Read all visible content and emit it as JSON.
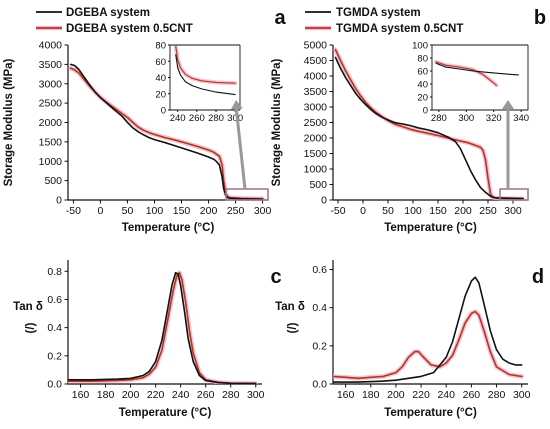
{
  "colors": {
    "black_series": "#111111",
    "red_series": "#b5361c",
    "red_glow": "#f2b8cf",
    "callout": "#999999",
    "callout_box": "#a07b92"
  },
  "chart_data": [
    {
      "id": "a",
      "type": "line",
      "panel_letter": "a",
      "xlabel": "Temperature (°C)",
      "ylabel": "Storage Modulus (MPa)",
      "xlim": [
        -60,
        310
      ],
      "ylim": [
        0,
        4000
      ],
      "xticks": [
        -50,
        0,
        50,
        100,
        150,
        200,
        250,
        300
      ],
      "yticks": [
        0,
        500,
        1000,
        1500,
        2000,
        2500,
        3000,
        3500,
        4000
      ],
      "legend": {
        "placement": "top",
        "entries": [
          "DGEBA system",
          "DGEBA system 0.5CNT"
        ]
      },
      "series": [
        {
          "name": "DGEBA system",
          "color": "black",
          "x": [
            -55,
            -48,
            -40,
            -30,
            -20,
            -10,
            0,
            10,
            20,
            30,
            40,
            50,
            60,
            70,
            80,
            90,
            100,
            120,
            140,
            160,
            180,
            200,
            210,
            215,
            220,
            225,
            228,
            232,
            236,
            240,
            260,
            280,
            300
          ],
          "y": [
            3500,
            3470,
            3370,
            3170,
            2970,
            2790,
            2640,
            2520,
            2400,
            2280,
            2160,
            2000,
            1860,
            1760,
            1680,
            1610,
            1560,
            1480,
            1390,
            1300,
            1210,
            1110,
            1050,
            990,
            900,
            600,
            300,
            110,
            60,
            45,
            30,
            25,
            20
          ]
        },
        {
          "name": "DGEBA system 0.5CNT",
          "color": "red",
          "x": [
            -55,
            -48,
            -40,
            -30,
            -20,
            -10,
            0,
            10,
            20,
            30,
            40,
            50,
            60,
            70,
            80,
            90,
            100,
            120,
            140,
            160,
            180,
            200,
            210,
            215,
            220,
            225,
            228,
            232,
            236,
            240,
            260,
            280,
            300
          ],
          "y": [
            3400,
            3360,
            3280,
            3110,
            2940,
            2790,
            2650,
            2540,
            2430,
            2330,
            2230,
            2130,
            2000,
            1880,
            1800,
            1740,
            1690,
            1610,
            1540,
            1460,
            1380,
            1290,
            1230,
            1180,
            1130,
            900,
            500,
            160,
            80,
            60,
            45,
            38,
            33
          ]
        }
      ],
      "inset": {
        "xlim": [
          232,
          305
        ],
        "ylim": [
          0,
          80
        ],
        "xticks": [
          240,
          260,
          280,
          300
        ],
        "yticks": [
          0,
          20,
          40,
          60,
          80
        ],
        "series": [
          {
            "name": "DGEBA system",
            "color": "black",
            "x": [
              238,
              240,
              243,
              248,
              255,
              265,
              280,
              300
            ],
            "y": [
              68,
              52,
              43,
              35,
              30,
              26,
              22,
              19
            ]
          },
          {
            "name": "DGEBA system 0.5CNT",
            "color": "red",
            "x": [
              238,
              240,
              243,
              248,
              255,
              265,
              280,
              300
            ],
            "y": [
              78,
              62,
              52,
              44,
              39,
              36,
              34,
              33
            ]
          }
        ]
      }
    },
    {
      "id": "b",
      "type": "line",
      "panel_letter": "b",
      "xlabel": "Temperature (°C)",
      "ylabel": "Storage Modulus (MPa)",
      "xlim": [
        -60,
        330
      ],
      "ylim": [
        0,
        5000
      ],
      "xticks": [
        -50,
        0,
        50,
        100,
        150,
        200,
        250,
        300
      ],
      "yticks": [
        0,
        500,
        1000,
        1500,
        2000,
        2500,
        3000,
        3500,
        4000,
        4500,
        5000
      ],
      "legend": {
        "placement": "top",
        "entries": [
          "TGMDA system",
          "TGMDA system 0.5CNT"
        ]
      },
      "series": [
        {
          "name": "TGMDA system",
          "color": "black",
          "x": [
            -55,
            -45,
            -35,
            -25,
            -15,
            -5,
            5,
            15,
            25,
            35,
            45,
            55,
            65,
            80,
            95,
            110,
            130,
            150,
            170,
            185,
            195,
            205,
            215,
            225,
            235,
            245,
            255,
            265,
            280,
            300,
            320
          ],
          "y": [
            4600,
            4250,
            3950,
            3700,
            3450,
            3250,
            3080,
            2930,
            2800,
            2700,
            2620,
            2550,
            2490,
            2450,
            2400,
            2330,
            2260,
            2170,
            2030,
            1880,
            1650,
            1300,
            950,
            650,
            400,
            250,
            120,
            70,
            60,
            55,
            50
          ]
        },
        {
          "name": "TGMDA system 0.5CNT",
          "color": "red",
          "x": [
            -55,
            -45,
            -35,
            -25,
            -15,
            -5,
            5,
            15,
            25,
            35,
            45,
            55,
            65,
            80,
            95,
            110,
            130,
            150,
            170,
            190,
            210,
            225,
            235,
            240,
            245,
            250,
            255,
            260,
            270,
            290,
            320
          ],
          "y": [
            4850,
            4500,
            4170,
            3880,
            3600,
            3360,
            3150,
            2980,
            2840,
            2720,
            2610,
            2520,
            2440,
            2360,
            2280,
            2220,
            2150,
            2080,
            2000,
            1920,
            1850,
            1760,
            1700,
            1600,
            1300,
            700,
            200,
            80,
            55,
            45,
            40
          ]
        }
      ],
      "inset": {
        "xlim": [
          275,
          345
        ],
        "ylim": [
          0,
          100
        ],
        "xticks": [
          280,
          300,
          320,
          340
        ],
        "yticks": [
          0,
          20,
          40,
          60,
          80,
          100
        ],
        "series": [
          {
            "name": "TGMDA system",
            "color": "black",
            "x": [
              278,
              285,
              295,
              305,
              315,
              325,
              338
            ],
            "y": [
              72,
              66,
              63,
              60,
              58,
              56,
              54
            ]
          },
          {
            "name": "TGMDA system 0.5CNT",
            "color": "red",
            "x": [
              278,
              285,
              295,
              305,
              312,
              318,
              322
            ],
            "y": [
              74,
              69,
              66,
              62,
              55,
              45,
              38
            ]
          }
        ]
      }
    },
    {
      "id": "c",
      "type": "line",
      "panel_letter": "c",
      "xlabel": "Temperature (°C)",
      "ylabel": "Tan δ",
      "ylabel_unit": "(/)",
      "xlim": [
        150,
        305
      ],
      "ylim": [
        0,
        0.88
      ],
      "xticks": [
        160,
        180,
        200,
        220,
        240,
        260,
        280,
        300
      ],
      "yticks": [
        0.0,
        0.2,
        0.4,
        0.6,
        0.8
      ],
      "series": [
        {
          "name": "DGEBA system",
          "color": "black",
          "x": [
            150,
            170,
            190,
            200,
            210,
            215,
            220,
            225,
            230,
            233,
            236,
            238,
            240,
            243,
            246,
            250,
            255,
            260,
            270,
            280,
            300
          ],
          "y": [
            0.03,
            0.03,
            0.035,
            0.04,
            0.06,
            0.09,
            0.16,
            0.31,
            0.55,
            0.7,
            0.79,
            0.78,
            0.7,
            0.52,
            0.32,
            0.16,
            0.06,
            0.025,
            0.01,
            0.005,
            0.003
          ]
        },
        {
          "name": "DGEBA system 0.5CNT",
          "color": "red",
          "x": [
            150,
            170,
            190,
            200,
            210,
            215,
            220,
            225,
            230,
            234,
            237,
            239,
            241,
            244,
            247,
            250,
            255,
            260,
            270,
            280,
            300
          ],
          "y": [
            0.02,
            0.02,
            0.025,
            0.03,
            0.045,
            0.07,
            0.12,
            0.24,
            0.47,
            0.66,
            0.77,
            0.79,
            0.74,
            0.58,
            0.38,
            0.22,
            0.08,
            0.03,
            0.012,
            0.006,
            0.004
          ]
        }
      ]
    },
    {
      "id": "d",
      "type": "line",
      "panel_letter": "d",
      "xlabel": "Temperature (°C)",
      "ylabel": "Tan δ",
      "ylabel_unit": "(/)",
      "xlim": [
        150,
        305
      ],
      "ylim": [
        0,
        0.65
      ],
      "xticks": [
        160,
        180,
        200,
        220,
        240,
        260,
        280,
        300
      ],
      "yticks": [
        0.0,
        0.2,
        0.4,
        0.6
      ],
      "series": [
        {
          "name": "TGMDA system",
          "color": "black",
          "x": [
            150,
            170,
            190,
            200,
            210,
            220,
            230,
            240,
            245,
            250,
            255,
            260,
            263,
            266,
            270,
            275,
            280,
            285,
            290,
            295,
            300
          ],
          "y": [
            0.01,
            0.01,
            0.015,
            0.02,
            0.03,
            0.04,
            0.06,
            0.14,
            0.22,
            0.34,
            0.46,
            0.54,
            0.56,
            0.53,
            0.42,
            0.28,
            0.18,
            0.13,
            0.11,
            0.1,
            0.1
          ]
        },
        {
          "name": "TGMDA system 0.5CNT",
          "color": "red",
          "x": [
            150,
            160,
            170,
            180,
            190,
            200,
            205,
            210,
            215,
            218,
            222,
            228,
            235,
            240,
            245,
            250,
            255,
            260,
            263,
            266,
            270,
            275,
            280,
            290,
            300
          ],
          "y": [
            0.04,
            0.035,
            0.03,
            0.035,
            0.04,
            0.06,
            0.09,
            0.14,
            0.17,
            0.17,
            0.14,
            0.1,
            0.09,
            0.11,
            0.15,
            0.23,
            0.32,
            0.37,
            0.38,
            0.36,
            0.28,
            0.17,
            0.09,
            0.05,
            0.04
          ]
        }
      ]
    }
  ]
}
